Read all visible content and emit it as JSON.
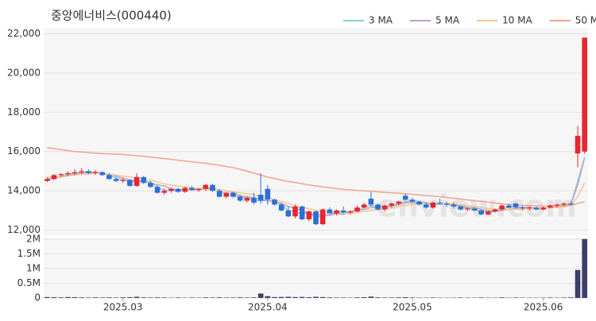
{
  "chart_data": [
    {
      "type": "candlestick",
      "title": "중앙에너비스(000440)",
      "watermark": "enview.com",
      "up_color": "#e8262f",
      "down_color": "#2e6fd6",
      "ylim": [
        11700,
        22300
      ],
      "yticks": [
        {
          "value": 12000,
          "label": "12,000"
        },
        {
          "value": 14000,
          "label": "14,000"
        },
        {
          "value": 16000,
          "label": "16,000"
        },
        {
          "value": 18000,
          "label": "18,000"
        },
        {
          "value": 20000,
          "label": "20,000"
        },
        {
          "value": 22000,
          "label": "22,000"
        }
      ],
      "grid": true,
      "legend": "top-right",
      "open": [
        14500,
        14600,
        14800,
        14850,
        14900,
        14950,
        15000,
        14900,
        14950,
        14800,
        14600,
        14500,
        14550,
        14250,
        14700,
        14400,
        14200,
        13900,
        14000,
        14100,
        13950,
        14150,
        14050,
        14100,
        14300,
        14000,
        13700,
        13900,
        13700,
        13500,
        13650,
        13800,
        14100,
        13550,
        13300,
        13000,
        12700,
        13200,
        12550,
        12950,
        12300,
        13050,
        12850,
        13000,
        12900,
        12950,
        13150,
        13600,
        13300,
        13050,
        13250,
        13350,
        13750,
        13550,
        13450,
        13300,
        13150,
        13400,
        13350,
        13300,
        13200,
        13050,
        13100,
        13000,
        12800,
        12950,
        13050,
        13250,
        13350,
        13150,
        13100,
        13150,
        13050,
        13150,
        13250,
        13300,
        13350,
        15900,
        16000
      ],
      "high": [
        14700,
        14850,
        14900,
        15000,
        15100,
        15150,
        15100,
        15050,
        15000,
        14900,
        14700,
        14650,
        14600,
        14900,
        14750,
        14500,
        14300,
        14100,
        14150,
        14150,
        14200,
        14250,
        14150,
        14350,
        14350,
        14100,
        13950,
        13950,
        13800,
        13700,
        13900,
        14900,
        14300,
        13600,
        13400,
        13200,
        13300,
        13250,
        13000,
        13000,
        13100,
        13150,
        13050,
        13200,
        13000,
        13250,
        13400,
        13950,
        13350,
        13300,
        13400,
        13500,
        13850,
        13650,
        13500,
        13400,
        13450,
        13600,
        13450,
        13400,
        13250,
        13150,
        13150,
        13050,
        13000,
        13100,
        13300,
        13350,
        13400,
        13250,
        13200,
        13200,
        13200,
        13300,
        13350,
        13400,
        13450,
        17300,
        21800
      ],
      "low": [
        14450,
        14550,
        14700,
        14750,
        14800,
        14850,
        14850,
        14800,
        14750,
        14550,
        14450,
        14400,
        14200,
        14200,
        14350,
        14150,
        13850,
        13800,
        13900,
        13900,
        13900,
        14000,
        13950,
        14000,
        13950,
        13650,
        13600,
        13650,
        13450,
        13400,
        13300,
        13350,
        13300,
        13250,
        12950,
        12650,
        12600,
        12500,
        12450,
        12250,
        12250,
        12800,
        12750,
        12850,
        12800,
        12900,
        13100,
        13200,
        13000,
        12950,
        13150,
        13250,
        13500,
        13400,
        13250,
        13100,
        13100,
        13300,
        13200,
        13100,
        13000,
        12950,
        12950,
        12750,
        12750,
        12900,
        13000,
        13100,
        13100,
        13000,
        13000,
        13000,
        13000,
        13100,
        13150,
        13200,
        13250,
        15200,
        15900
      ],
      "close": [
        14600,
        14800,
        14850,
        14900,
        14950,
        15000,
        14900,
        14950,
        14800,
        14600,
        14500,
        14550,
        14250,
        14700,
        14400,
        14200,
        13900,
        14000,
        14100,
        13950,
        14150,
        14050,
        14100,
        14300,
        14000,
        13700,
        13900,
        13700,
        13500,
        13650,
        13400,
        13500,
        13550,
        13300,
        13000,
        12700,
        13200,
        12550,
        12950,
        12300,
        13050,
        12850,
        13000,
        12900,
        12950,
        13150,
        13300,
        13300,
        13050,
        13250,
        13350,
        13450,
        13550,
        13450,
        13300,
        13150,
        13400,
        13350,
        13300,
        13200,
        13050,
        13100,
        13000,
        12800,
        12950,
        13050,
        13250,
        13150,
        13150,
        13100,
        13150,
        13050,
        13150,
        13250,
        13300,
        13350,
        13300,
        16800,
        21800
      ],
      "series": [
        {
          "name": "3 MA",
          "color": "#86d3d3",
          "values": [
            14550,
            14650,
            14750,
            14850,
            14900,
            14950,
            14950,
            14950,
            14900,
            14800,
            14650,
            14550,
            14450,
            14500,
            14450,
            14450,
            14150,
            14050,
            14000,
            14000,
            14050,
            14050,
            14100,
            14150,
            14150,
            14000,
            13850,
            13750,
            13700,
            13600,
            13500,
            13500,
            13500,
            13450,
            13300,
            13000,
            12950,
            12800,
            12900,
            12600,
            12750,
            12750,
            12950,
            12900,
            12950,
            13000,
            13150,
            13250,
            13200,
            13200,
            13200,
            13350,
            13450,
            13500,
            13450,
            13300,
            13300,
            13300,
            13350,
            13300,
            13200,
            13100,
            13050,
            12950,
            12900,
            12950,
            13100,
            13150,
            13200,
            13150,
            13150,
            13100,
            13100,
            13150,
            13250,
            13300,
            13300,
            14500,
            15700
          ]
        },
        {
          "name": "5 MA",
          "color": "#bc9fcc",
          "values": [
            14600,
            14650,
            14700,
            14800,
            14850,
            14900,
            14950,
            14950,
            14900,
            14850,
            14750,
            14650,
            14550,
            14500,
            14500,
            14400,
            14300,
            14250,
            14100,
            14050,
            14050,
            14050,
            14050,
            14100,
            14100,
            14050,
            14000,
            13900,
            13750,
            13700,
            13650,
            13550,
            13500,
            13450,
            13350,
            13200,
            13150,
            12950,
            12900,
            12750,
            12800,
            12750,
            12850,
            12800,
            12950,
            13000,
            13050,
            13150,
            13150,
            13200,
            13250,
            13300,
            13400,
            13400,
            13400,
            13400,
            13350,
            13350,
            13300,
            13300,
            13250,
            13150,
            13150,
            13050,
            13000,
            12950,
            13000,
            13050,
            13100,
            13150,
            13150,
            13100,
            13100,
            13150,
            13200,
            13250,
            13300,
            14300,
            15700
          ]
        },
        {
          "name": "10 MA",
          "color": "#f4c98e",
          "values": [
            14700,
            14700,
            14700,
            14750,
            14800,
            14850,
            14850,
            14900,
            14900,
            14850,
            14800,
            14750,
            14700,
            14650,
            14600,
            14550,
            14450,
            14350,
            14300,
            14250,
            14200,
            14150,
            14100,
            14100,
            14050,
            14050,
            14000,
            13950,
            13900,
            13850,
            13800,
            13700,
            13650,
            13550,
            13450,
            13350,
            13250,
            13150,
            13100,
            13000,
            12950,
            12900,
            12900,
            12850,
            12850,
            12900,
            12950,
            13000,
            13050,
            13100,
            13150,
            13200,
            13250,
            13300,
            13350,
            13350,
            13350,
            13350,
            13350,
            13350,
            13300,
            13250,
            13200,
            13150,
            13100,
            13050,
            13050,
            13050,
            13050,
            13050,
            13100,
            13100,
            13100,
            13150,
            13150,
            13200,
            13250,
            13700,
            14400
          ]
        },
        {
          "name": "50 MA",
          "color": "#f3a290",
          "values": [
            16200,
            16150,
            16100,
            16050,
            16000,
            15980,
            15950,
            15920,
            15900,
            15880,
            15870,
            15850,
            15820,
            15790,
            15760,
            15720,
            15680,
            15640,
            15600,
            15560,
            15520,
            15480,
            15440,
            15400,
            15350,
            15300,
            15240,
            15180,
            15100,
            15000,
            14900,
            14800,
            14700,
            14620,
            14550,
            14480,
            14420,
            14360,
            14300,
            14250,
            14200,
            14160,
            14120,
            14080,
            14050,
            14020,
            14000,
            13980,
            13950,
            13920,
            13900,
            13880,
            13850,
            13820,
            13790,
            13760,
            13730,
            13700,
            13660,
            13620,
            13580,
            13540,
            13500,
            13460,
            13420,
            13380,
            13340,
            13300,
            13280,
            13260,
            13250,
            13240,
            13230,
            13230,
            13240,
            13250,
            13280,
            13350,
            13450
          ]
        }
      ]
    },
    {
      "type": "bar",
      "color": "#3b3d6b",
      "categories": [
        null,
        null,
        null,
        null,
        null,
        null,
        null,
        null,
        null,
        null,
        null,
        "2025.03",
        null,
        null,
        null,
        null,
        null,
        null,
        null,
        null,
        null,
        null,
        null,
        null,
        null,
        null,
        null,
        null,
        null,
        null,
        null,
        null,
        "2025.04",
        null,
        null,
        null,
        null,
        null,
        null,
        null,
        null,
        null,
        null,
        null,
        null,
        null,
        null,
        null,
        null,
        null,
        null,
        null,
        null,
        "2025.05",
        null,
        null,
        null,
        null,
        null,
        null,
        null,
        null,
        null,
        null,
        null,
        null,
        null,
        null,
        null,
        null,
        null,
        null,
        "2025.06",
        null,
        null,
        null,
        null,
        null,
        null
      ],
      "values": [
        30000,
        25000,
        20000,
        30000,
        25000,
        20000,
        15000,
        20000,
        15000,
        20000,
        15000,
        20000,
        25000,
        40000,
        20000,
        15000,
        20000,
        15000,
        10000,
        15000,
        10000,
        15000,
        10000,
        20000,
        15000,
        20000,
        15000,
        15000,
        20000,
        15000,
        20000,
        150000,
        60000,
        30000,
        35000,
        40000,
        30000,
        35000,
        25000,
        40000,
        30000,
        20000,
        15000,
        15000,
        10000,
        20000,
        25000,
        45000,
        20000,
        15000,
        15000,
        20000,
        25000,
        15000,
        10000,
        10000,
        15000,
        10000,
        10000,
        10000,
        15000,
        10000,
        10000,
        15000,
        10000,
        10000,
        20000,
        10000,
        15000,
        10000,
        10000,
        10000,
        10000,
        15000,
        10000,
        15000,
        20000,
        950000,
        2000000
      ],
      "ylim": [
        0,
        2050000
      ],
      "yticks": [
        0,
        {
          "value": 500000,
          "label": "0.5M"
        },
        {
          "value": 1000000,
          "label": "1M"
        },
        {
          "value": 1500000,
          "label": "1.5M"
        },
        {
          "value": 2000000,
          "label": "2M"
        }
      ]
    }
  ]
}
